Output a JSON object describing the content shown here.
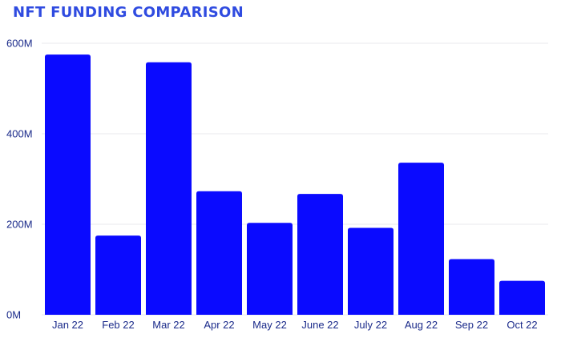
{
  "title": "NFT FUNDING COMPARISON",
  "colors": {
    "bar": "#0a0aff",
    "title": "#2f4be0",
    "grid": "#e8e8ee",
    "labels": "#1a2a8a"
  },
  "chart_data": {
    "type": "bar",
    "title": "NFT FUNDING COMPARISON",
    "xlabel": "",
    "ylabel": "",
    "categories": [
      "Jan 22",
      "Feb 22",
      "Mar 22",
      "Apr 22",
      "May 22",
      "June 22",
      "July 22",
      "Aug 22",
      "Sep 22",
      "Oct 22"
    ],
    "values": [
      575,
      175,
      558,
      273,
      203,
      267,
      192,
      336,
      123,
      75
    ],
    "ylim": [
      0,
      600
    ],
    "yticks": [
      0,
      200,
      400,
      600
    ],
    "ytick_labels": [
      "0M",
      "200M",
      "400M",
      "600M"
    ],
    "grid": true,
    "legend": "none"
  }
}
